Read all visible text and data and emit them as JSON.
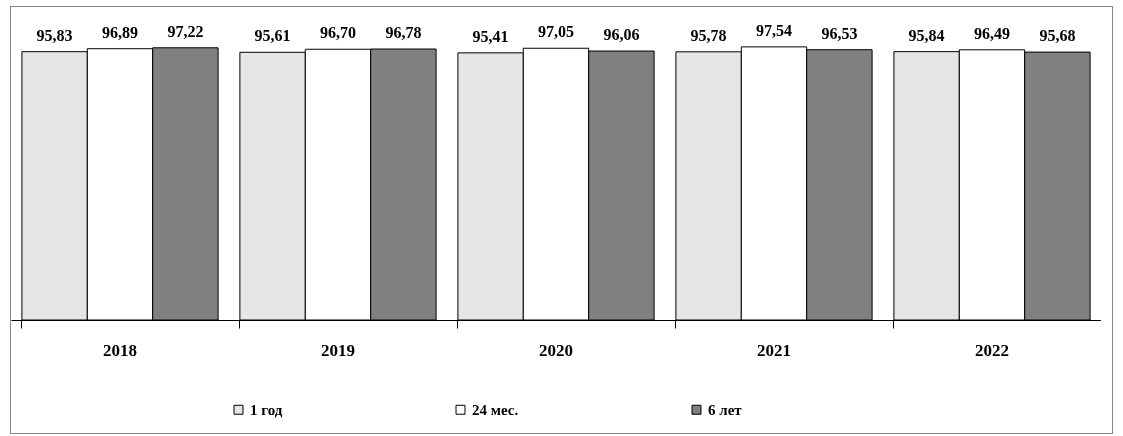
{
  "chart_data": {
    "type": "bar",
    "categories": [
      "2018",
      "2019",
      "2020",
      "2021",
      "2022"
    ],
    "series": [
      {
        "name": "1 год",
        "color": "#e6e6e6",
        "values": [
          95.83,
          95.61,
          95.41,
          95.78,
          95.84
        ],
        "value_labels": [
          "95,83",
          "95,61",
          "95,41",
          "95,78",
          "95,84"
        ]
      },
      {
        "name": "24 мес.",
        "color": "#ffffff",
        "values": [
          96.89,
          96.7,
          97.05,
          97.54,
          96.49
        ],
        "value_labels": [
          "96,89",
          "96,70",
          "97,05",
          "97,54",
          "96,49"
        ]
      },
      {
        "name": "6 лет",
        "color": "#808080",
        "values": [
          97.22,
          96.78,
          96.06,
          96.53,
          95.68
        ],
        "value_labels": [
          "97,22",
          "96,78",
          "96,06",
          "96,53",
          "95,68"
        ]
      }
    ],
    "legend": "bottom"
  }
}
